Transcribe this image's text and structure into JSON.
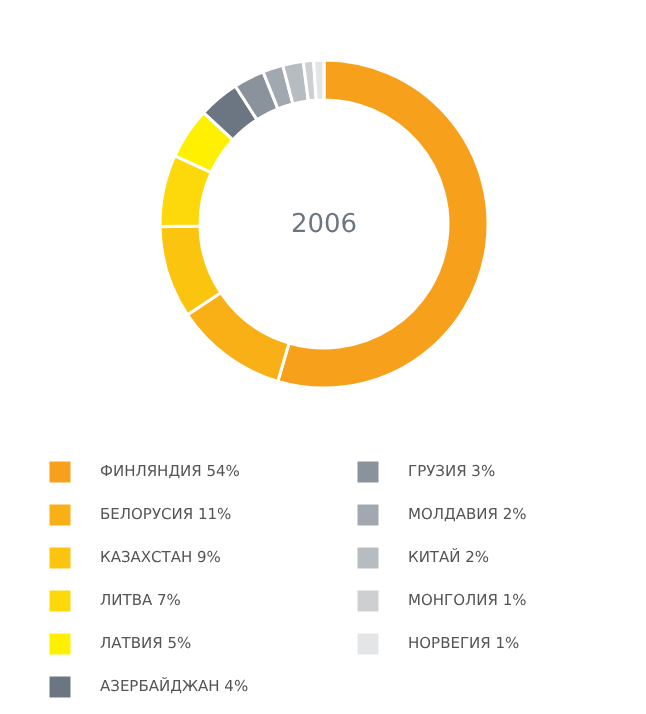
{
  "chart_data": {
    "type": "donut",
    "title": "2006",
    "legend": "bottom",
    "categories": [
      "ФИНЛЯНДИЯ",
      "БЕЛОРУСИЯ",
      "КАЗАХСТАН",
      "ЛИТВА",
      "ЛАТВИЯ",
      "АЗЕРБАЙДЖАН",
      "ГРУЗИЯ",
      "МОЛДАВИЯ",
      "КИТАЙ",
      "МОНГОЛИЯ",
      "НОРВЕГИЯ"
    ],
    "values": [
      54,
      11,
      9,
      7,
      5,
      4,
      3,
      2,
      2,
      1,
      1
    ],
    "value_labels": [
      "54%",
      "11%",
      "9%",
      "7%",
      "5%",
      "4%",
      "3%",
      "2%",
      "2%",
      "1%",
      "1%"
    ],
    "colors": [
      "#f6a01c",
      "#f8b016",
      "#fbc40e",
      "#fdd80a",
      "#fff000",
      "#6b7682",
      "#8a929b",
      "#a2a8af",
      "#b7bcc1",
      "#cdd0d3",
      "#e3e5e7"
    ]
  }
}
